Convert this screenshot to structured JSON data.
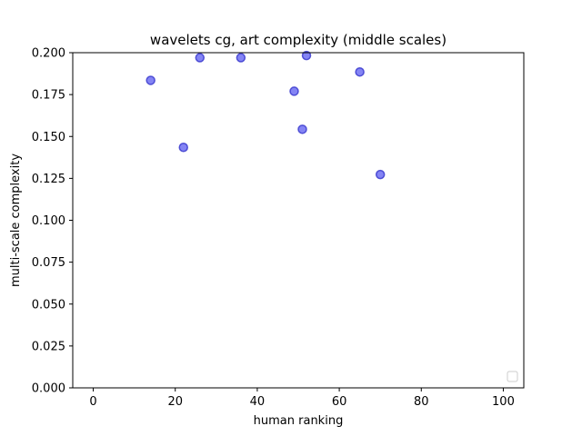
{
  "chart_data": {
    "type": "scatter",
    "title": "wavelets cg, art complexity (middle scales)",
    "xlabel": "human ranking",
    "ylabel": "multi-scale complexity",
    "xlim": [
      -5,
      105
    ],
    "ylim": [
      0,
      0.2
    ],
    "x_ticks": [
      0,
      20,
      40,
      60,
      80,
      100
    ],
    "x_tick_labels": [
      "0",
      "20",
      "40",
      "60",
      "80",
      "100"
    ],
    "y_ticks": [
      0,
      0.025,
      0.05,
      0.075,
      0.1,
      0.125,
      0.15,
      0.175,
      0.2
    ],
    "y_tick_labels": [
      "0.000",
      "0.025",
      "0.050",
      "0.075",
      "0.100",
      "0.125",
      "0.150",
      "0.175",
      "0.200"
    ],
    "grid": false,
    "legend": {
      "placement": "lower-right",
      "entries": []
    },
    "colors": {
      "marker_fill": "#5b5bf0",
      "marker_edge": "#3333cc",
      "axes": "#000000"
    },
    "series": [
      {
        "x": [
          14,
          22,
          26,
          36,
          49,
          51,
          52,
          65,
          70
        ],
        "y": [
          0.1835,
          0.1435,
          0.197,
          0.197,
          0.177,
          0.1543,
          0.1983,
          0.1885,
          0.1273
        ]
      }
    ]
  }
}
